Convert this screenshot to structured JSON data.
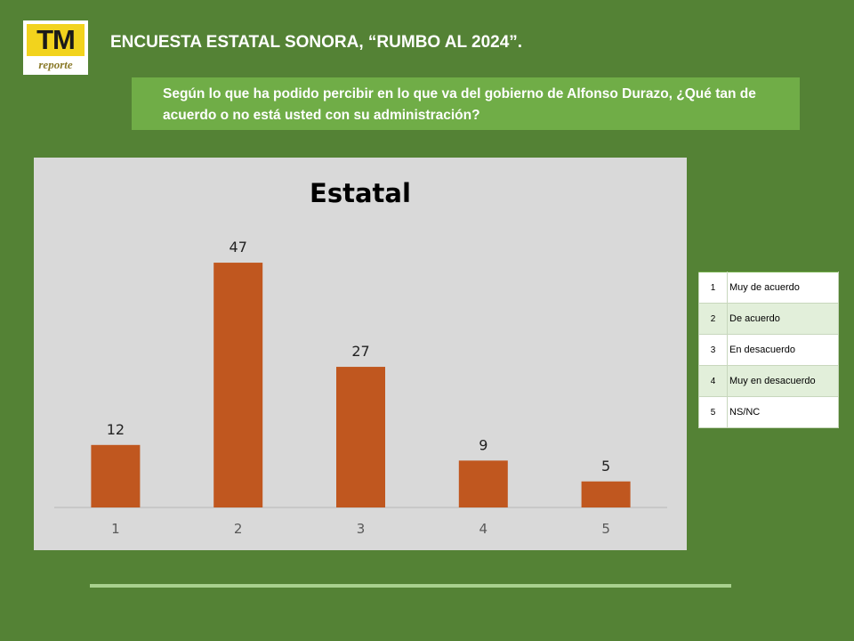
{
  "logo": {
    "main": "TM",
    "sub": "reporte"
  },
  "header": {
    "title": "ENCUESTA ESTATAL SONORA, “RUMBO AL 2024”."
  },
  "question": "Según lo que ha podido percibir en lo que va del gobierno de Alfonso Durazo, ¿Qué tan de acuerdo o no está usted con su administración?",
  "chart_data": {
    "type": "bar",
    "title": "Estatal",
    "categories": [
      "1",
      "2",
      "3",
      "4",
      "5"
    ],
    "values": [
      12,
      47,
      27,
      9,
      5
    ],
    "xlabel": "",
    "ylabel": "",
    "ylim": [
      0,
      50
    ],
    "grid": false,
    "legend": "none",
    "bar_color": "#c0571f",
    "background": "#d9d9d9"
  },
  "legend_table": [
    {
      "num": "1",
      "label": "Muy de acuerdo"
    },
    {
      "num": "2",
      "label": "De acuerdo"
    },
    {
      "num": "3",
      "label": "En desacuerdo"
    },
    {
      "num": "4",
      "label": "Muy en desacuerdo"
    },
    {
      "num": "5",
      "label": "NS/NC"
    }
  ],
  "colors": {
    "background": "#548235",
    "accent": "#70ad47",
    "divider": "#a9d18e"
  }
}
